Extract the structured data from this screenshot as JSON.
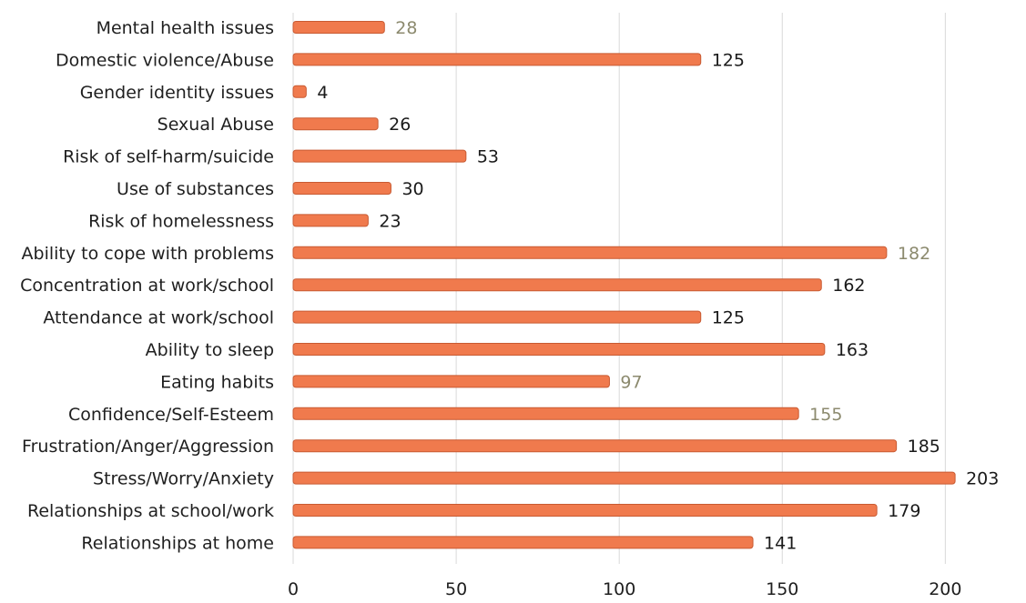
{
  "chart_data": {
    "type": "bar",
    "orientation": "horizontal",
    "title": "",
    "xlabel": "",
    "ylabel": "",
    "categories": [
      "Mental health issues",
      "Domestic violence/Abuse",
      "Gender identity issues",
      "Sexual Abuse",
      "Risk of self-harm/suicide",
      "Use of substances",
      "Risk of homelessness",
      "Ability to cope with problems",
      "Concentration at work/school",
      "Attendance at work/school",
      "Ability to sleep",
      "Eating habits",
      "Confidence/Self-Esteem",
      "Frustration/Anger/Aggression",
      "Stress/Worry/Anxiety",
      "Relationships at school/work",
      "Relationships at home"
    ],
    "values": [
      28,
      125,
      4,
      26,
      53,
      30,
      23,
      182,
      162,
      125,
      163,
      97,
      155,
      185,
      203,
      179,
      141
    ],
    "data_labels": [
      "28",
      "125",
      "4",
      "26",
      "53",
      "30",
      "23",
      "182",
      "162",
      "125",
      "163",
      "97",
      "155",
      "185",
      "203",
      "179",
      "141"
    ],
    "xlim": [
      0,
      220
    ],
    "xticks": [
      0,
      50,
      100,
      150,
      200
    ],
    "xtick_labels": [
      "0",
      "50",
      "100",
      "150",
      "200"
    ],
    "grid": true,
    "legend": "none",
    "colors": {
      "bar": "#f07a4d",
      "bar_edge": "#c85a32",
      "grid": "#d9d9d9",
      "label": "#1f1f1f",
      "muted_label": "#8c8a6e"
    },
    "muted_value_categories": [
      "Mental health issues",
      "Ability to cope with problems",
      "Eating habits",
      "Confidence/Self-Esteem"
    ]
  }
}
